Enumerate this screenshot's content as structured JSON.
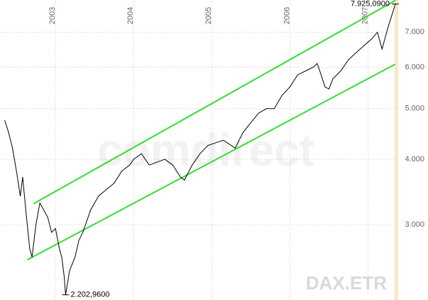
{
  "chart_data": {
    "type": "line",
    "title": "DAX.ETR",
    "watermark": "comdirect",
    "log_scale": true,
    "grid": true,
    "x": [
      2002.35,
      2002.4,
      2002.45,
      2002.5,
      2002.55,
      2002.58,
      2002.62,
      2002.67,
      2002.7,
      2002.75,
      2002.8,
      2002.85,
      2002.9,
      2002.95,
      2003.0,
      2003.05,
      2003.08,
      2003.11,
      2003.13,
      2003.18,
      2003.25,
      2003.3,
      2003.35,
      2003.45,
      2003.55,
      2003.65,
      2003.75,
      2003.85,
      2003.95,
      2004.0,
      2004.1,
      2004.2,
      2004.3,
      2004.4,
      2004.5,
      2004.6,
      2004.65,
      2004.75,
      2004.85,
      2004.95,
      2005.05,
      2005.15,
      2005.25,
      2005.3,
      2005.4,
      2005.5,
      2005.6,
      2005.7,
      2005.8,
      2005.9,
      2006.0,
      2006.1,
      2006.2,
      2006.3,
      2006.35,
      2006.4,
      2006.45,
      2006.5,
      2006.55,
      2006.65,
      2006.75,
      2006.85,
      2006.95,
      2007.05,
      2007.12,
      2007.18,
      2007.25,
      2007.3,
      2007.35
    ],
    "series": [
      {
        "name": "DAX.ETR",
        "color": "#000000",
        "values": [
          4750,
          4500,
          4200,
          3800,
          3400,
          3700,
          3200,
          2700,
          2600,
          3000,
          3300,
          3200,
          3100,
          2900,
          2950,
          2700,
          2600,
          2400,
          2202.96,
          2450,
          2600,
          2800,
          2900,
          3200,
          3400,
          3500,
          3600,
          3800,
          3900,
          4000,
          4100,
          3900,
          3950,
          4000,
          3900,
          3700,
          3650,
          3900,
          4100,
          4250,
          4300,
          4350,
          4250,
          4200,
          4500,
          4700,
          4900,
          5000,
          5000,
          5300,
          5500,
          5800,
          5900,
          6000,
          6100,
          5800,
          5500,
          5450,
          5700,
          5900,
          6200,
          6400,
          6600,
          6800,
          7000,
          6500,
          7100,
          7500,
          7925.09
        ]
      }
    ],
    "trendlines": [
      {
        "color": "#33dd33",
        "x": [
          2002.72,
          2007.35
        ],
        "values": [
          3290,
          8050
        ]
      },
      {
        "color": "#33dd33",
        "x": [
          2002.64,
          2007.35
        ],
        "values": [
          2570,
          6080
        ]
      }
    ],
    "annotations": [
      {
        "x": 2007.35,
        "value": 7925.09,
        "label": "7.925,0900"
      },
      {
        "x": 2003.13,
        "value": 2202.96,
        "label": "2.202,9600"
      }
    ],
    "xlim": [
      2002.29,
      2007.35
    ],
    "xticks": [
      2003,
      2004,
      2005,
      2006,
      2007
    ],
    "ylim": [
      2153,
      8065
    ],
    "yticks": [
      {
        "value": 3000,
        "label": "3.000"
      },
      {
        "value": 4000,
        "label": "4.000"
      },
      {
        "value": 5000,
        "label": "5.000"
      },
      {
        "value": 6000,
        "label": "6.000"
      },
      {
        "value": 7000,
        "label": "7.000"
      }
    ]
  }
}
